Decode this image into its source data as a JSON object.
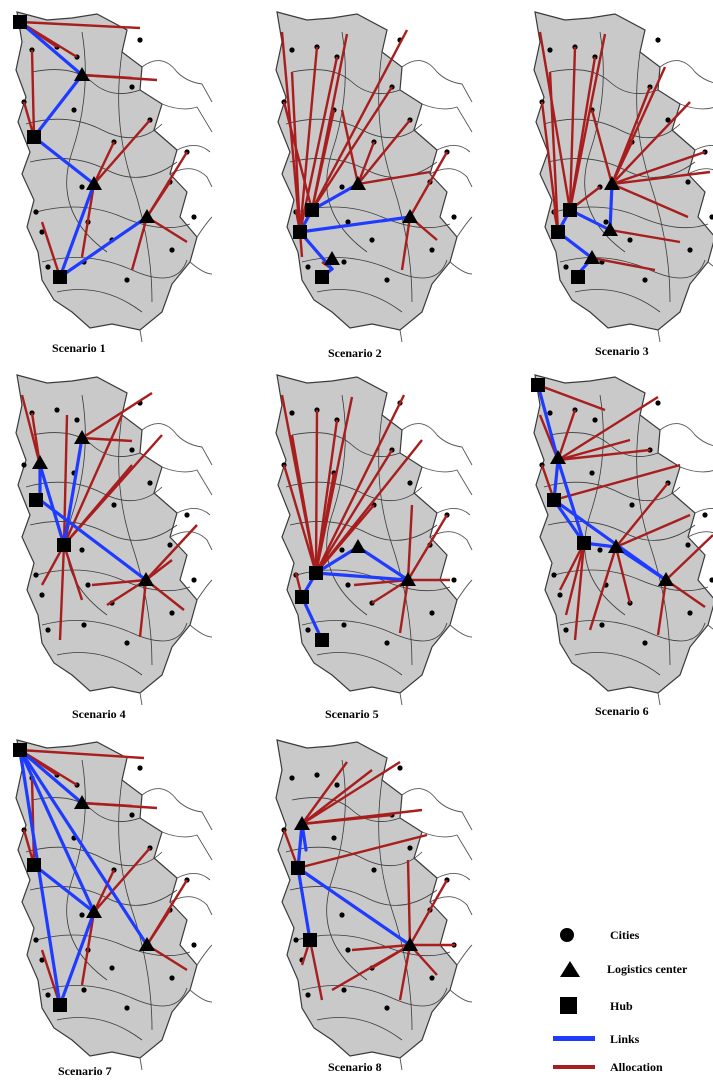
{
  "colors": {
    "region_fill": "#c9c9c9",
    "region_stroke": "#3a3a3a",
    "outside_stroke": "#555555",
    "link": "#1f3bff",
    "allocation": "#a81d1d",
    "symbol": "#000000"
  },
  "scenarios": [
    {
      "caption": "Scenario 1",
      "symbol": "scenario-1"
    },
    {
      "caption": "Scenario 2",
      "symbol": "scenario-2"
    },
    {
      "caption": "Scenario 3",
      "symbol": "scenario-3"
    },
    {
      "caption": "Scenario 4",
      "symbol": "scenario-4"
    },
    {
      "caption": "Scenario 5",
      "symbol": "scenario-5"
    },
    {
      "caption": "Scenario 6",
      "symbol": "scenario-6"
    },
    {
      "caption": "Scenario 7",
      "symbol": "scenario-7"
    },
    {
      "caption": "Scenario 8",
      "symbol": "scenario-8"
    }
  ],
  "legend": {
    "cities": "Cities",
    "logistics_center": "Logistics center",
    "hub": "Hub",
    "links": "Links",
    "allocation": "Allocation"
  }
}
